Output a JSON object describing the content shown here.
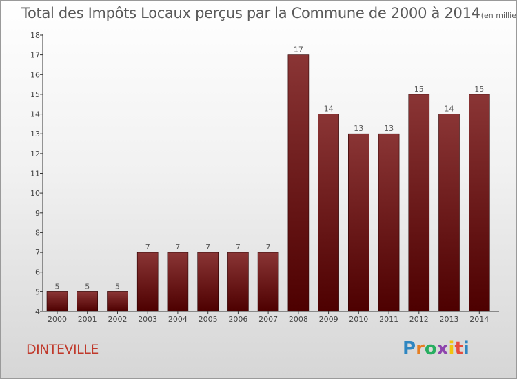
{
  "header": {
    "title": "Total des Impôts Locaux perçus par la Commune de 2000 à 2014",
    "subtitle": "(en milliers d'€)"
  },
  "footer": {
    "commune": "DINTEVILLE",
    "logo_letters": [
      "P",
      "r",
      "o",
      "x",
      "i",
      "t",
      "i"
    ]
  },
  "colors": {
    "bar_top": "#8a3535",
    "bar_bottom": "#4d0000",
    "axis": "#333333"
  },
  "chart_data": {
    "type": "bar",
    "title": "Total des Impôts Locaux perçus par la Commune de 2000 à 2014",
    "xlabel": "",
    "ylabel": "",
    "ylim": [
      4,
      18
    ],
    "yticks": [
      4,
      5,
      6,
      7,
      8,
      9,
      10,
      11,
      12,
      13,
      14,
      15,
      16,
      17,
      18
    ],
    "grid": false,
    "categories": [
      "2000",
      "2001",
      "2002",
      "2003",
      "2004",
      "2005",
      "2006",
      "2007",
      "2008",
      "2009",
      "2010",
      "2011",
      "2012",
      "2013",
      "2014"
    ],
    "values": [
      5,
      5,
      5,
      7,
      7,
      7,
      7,
      7,
      17,
      14,
      13,
      13,
      15,
      14,
      15
    ]
  }
}
